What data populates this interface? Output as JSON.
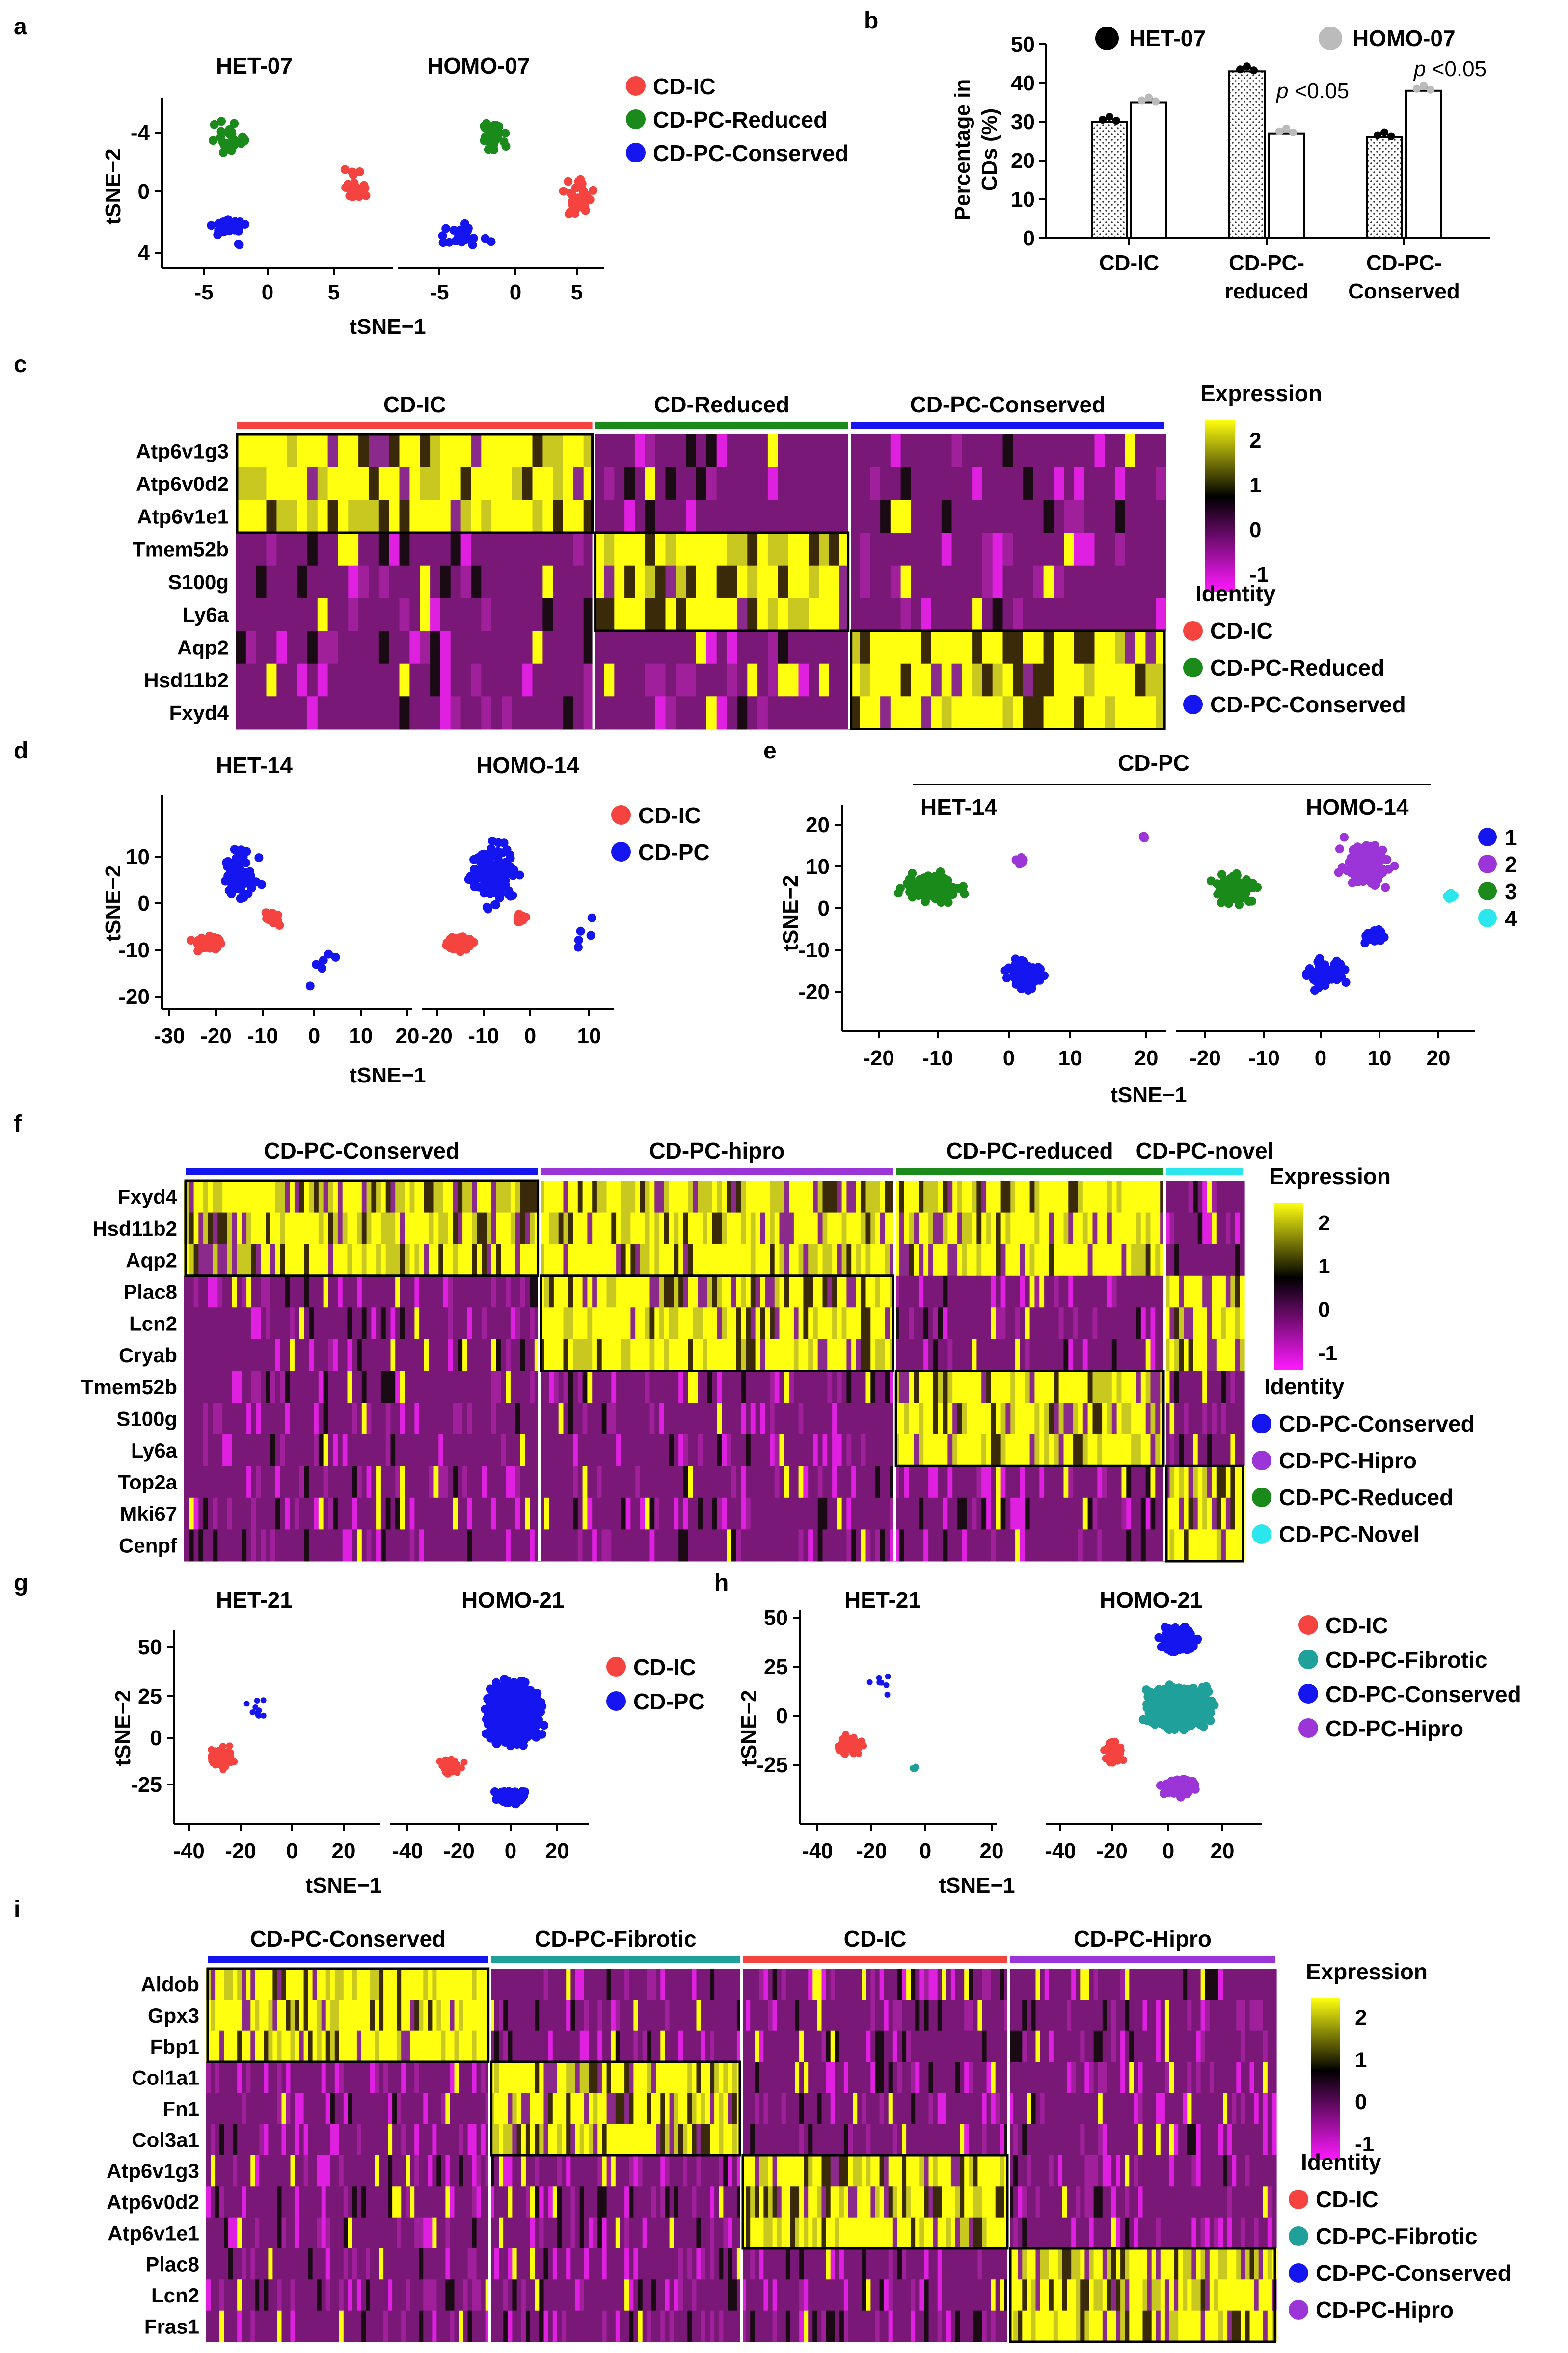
{
  "colors": {
    "ic": "#f5433f",
    "reduced": "#1a8a1a",
    "conserved": "#1515f0",
    "hipro": "#9b35d8",
    "novel": "#2ce6ee",
    "fibrotic": "#20a09a",
    "heat_low": "#ff1aff",
    "heat_mid": "#000000",
    "heat_high": "#ffff10",
    "bar_het": "#000000",
    "bar_homo": "#bbbbbb"
  },
  "panel_labels": [
    "a",
    "b",
    "c",
    "d",
    "e",
    "f",
    "g",
    "h",
    "i"
  ],
  "panel_a": {
    "titles": [
      "HET-07",
      "HOMO-07"
    ],
    "legend": [
      "CD-IC",
      "CD-PC-Reduced",
      "CD-PC-Conserved"
    ],
    "xlabel": "tSNE−1",
    "ylabel": "tSNE−2",
    "xticks": [
      "-5",
      "0",
      "5"
    ],
    "yticks": [
      "-4",
      "0",
      "4"
    ]
  },
  "panel_b": {
    "legend": [
      "HET-07",
      "HOMO-07"
    ],
    "annotations": [
      "p <0.05",
      "p <0.05"
    ]
  },
  "panel_c": {
    "col_groups": [
      "CD-IC",
      "CD-Reduced",
      "CD-PC-Conserved"
    ],
    "genes": [
      "Atp6v1g3",
      "Atp6v0d2",
      "Atp6v1e1",
      "Tmem52b",
      "S100g",
      "Ly6a",
      "Aqp2",
      "Hsd11b2",
      "Fxyd4"
    ],
    "scale_title": "Expression",
    "scale_ticks": [
      "2",
      "1",
      "0",
      "-1"
    ],
    "identity_title": "Identity",
    "identity": [
      "CD-IC",
      "CD-PC-Reduced",
      "CD-PC-Conserved"
    ]
  },
  "panel_d": {
    "titles": [
      "HET-14",
      "HOMO-14"
    ],
    "legend": [
      "CD-IC",
      "CD-PC"
    ],
    "xlabel": "tSNE−1",
    "ylabel": "tSNE−2",
    "xticks": [
      "-30",
      "-20",
      "-10",
      "0",
      "10",
      "20"
    ],
    "yticks": [
      "10",
      "0",
      "-10",
      "-20"
    ]
  },
  "panel_e": {
    "header": "CD-PC",
    "titles": [
      "HET-14",
      "HOMO-14"
    ],
    "legend": [
      "1",
      "2",
      "3",
      "4"
    ],
    "xlabel": "tSNE−1",
    "ylabel": "tSNE−2",
    "xticks": [
      "-20",
      "-10",
      "0",
      "10",
      "20"
    ],
    "yticks": [
      "20",
      "10",
      "0",
      "-10",
      "-20"
    ]
  },
  "panel_f": {
    "col_groups": [
      "CD-PC-Conserved",
      "CD-PC-hipro",
      "CD-PC-reduced",
      "CD-PC-novel"
    ],
    "genes": [
      "Fxyd4",
      "Hsd11b2",
      "Aqp2",
      "Plac8",
      "Lcn2",
      "Cryab",
      "Tmem52b",
      "S100g",
      "Ly6a",
      "Top2a",
      "Mki67",
      "Cenpf"
    ],
    "scale_title": "Expression",
    "scale_ticks": [
      "2",
      "1",
      "0",
      "-1"
    ],
    "identity_title": "Identity",
    "identity": [
      "CD-PC-Conserved",
      "CD-PC-Hipro",
      "CD-PC-Reduced",
      "CD-PC-Novel"
    ]
  },
  "panel_g": {
    "titles": [
      "HET-21",
      "HOMO-21"
    ],
    "legend": [
      "CD-IC",
      "CD-PC"
    ],
    "xlabel": "tSNE−1",
    "ylabel": "tSNE−2",
    "xticks": [
      "-40",
      "-20",
      "0",
      "20"
    ],
    "yticks": [
      "50",
      "25",
      "0",
      "-25"
    ]
  },
  "panel_h": {
    "titles": [
      "HET-21",
      "HOMO-21"
    ],
    "legend": [
      "CD-IC",
      "CD-PC-Fibrotic",
      "CD-PC-Conserved",
      "CD-PC-Hipro"
    ],
    "xlabel": "tSNE−1",
    "ylabel": "tSNE−2",
    "xticks": [
      "-40",
      "-20",
      "0",
      "20"
    ],
    "yticks": [
      "50",
      "25",
      "0",
      "-25"
    ]
  },
  "panel_i": {
    "col_groups": [
      "CD-PC-Conserved",
      "CD-PC-Fibrotic",
      "CD-IC",
      "CD-PC-Hipro"
    ],
    "genes": [
      "Aldob",
      "Gpx3",
      "Fbp1",
      "Col1a1",
      "Fn1",
      "Col3a1",
      "Atp6v1g3",
      "Atp6v0d2",
      "Atp6v1e1",
      "Plac8",
      "Lcn2",
      "Fras1"
    ],
    "scale_title": "Expression",
    "scale_ticks": [
      "2",
      "1",
      "0",
      "-1"
    ],
    "identity_title": "Identity",
    "identity": [
      "CD-IC",
      "CD-PC-Fibrotic",
      "CD-PC-Conserved",
      "CD-PC-Hipro"
    ]
  },
  "chart_data": [
    {
      "type": "bar",
      "panel": "b",
      "categories": [
        "CD-IC",
        "CD-PC-\nreduced",
        "CD-PC-\nConserved"
      ],
      "category_lines": [
        [
          "CD-IC"
        ],
        [
          "CD-PC-",
          "reduced"
        ],
        [
          "CD-PC-",
          "Conserved"
        ]
      ],
      "series": [
        {
          "name": "HET-07",
          "values": [
            30,
            43,
            26
          ]
        },
        {
          "name": "HOMO-07",
          "values": [
            35,
            27,
            38
          ]
        }
      ],
      "ylabel": "Percentage in CDs (%)",
      "ylabel_lines": [
        "Percentage in",
        "CDs (%)"
      ],
      "ylim": [
        0,
        50
      ],
      "yticks": [
        "0",
        "10",
        "20",
        "30",
        "40",
        "50"
      ],
      "annotations": [
        "p <0.05",
        "p <0.05"
      ]
    }
  ]
}
